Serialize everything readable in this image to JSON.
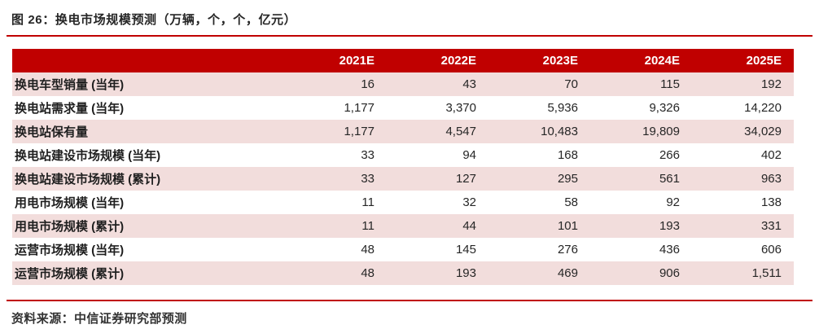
{
  "figure": {
    "title": "图 26：换电市场规模预测（万辆，个，个，亿元）",
    "source": "资料来源：中信证券研究部预测"
  },
  "chart_data": {
    "type": "table",
    "columns": [
      "",
      "2021E",
      "2022E",
      "2023E",
      "2024E",
      "2025E"
    ],
    "rows": [
      {
        "label": "换电车型销量 (当年)",
        "values": [
          "16",
          "43",
          "70",
          "115",
          "192"
        ]
      },
      {
        "label": "换电站需求量 (当年)",
        "values": [
          "1,177",
          "3,370",
          "5,936",
          "9,326",
          "14,220"
        ]
      },
      {
        "label": "换电站保有量",
        "values": [
          "1,177",
          "4,547",
          "10,483",
          "19,809",
          "34,029"
        ]
      },
      {
        "label": "换电站建设市场规模 (当年)",
        "values": [
          "33",
          "94",
          "168",
          "266",
          "402"
        ]
      },
      {
        "label": "换电站建设市场规模 (累计)",
        "values": [
          "33",
          "127",
          "295",
          "561",
          "963"
        ]
      },
      {
        "label": "用电市场规模 (当年)",
        "values": [
          "11",
          "32",
          "58",
          "92",
          "138"
        ]
      },
      {
        "label": "用电市场规模 (累计)",
        "values": [
          "11",
          "44",
          "101",
          "193",
          "331"
        ]
      },
      {
        "label": "运营市场规模 (当年)",
        "values": [
          "48",
          "145",
          "276",
          "436",
          "606"
        ]
      },
      {
        "label": "运营市场规模 (累计)",
        "values": [
          "48",
          "193",
          "469",
          "906",
          "1,511"
        ]
      }
    ],
    "layout": {
      "header_position": "top",
      "striped": true,
      "value_alignment": "right"
    },
    "colors": {
      "header_bg": "#c00000",
      "header_text": "#ffffff",
      "row_alt_bg": "#f2dddc",
      "rule_red": "#c00000",
      "body_text": "#262626"
    }
  }
}
